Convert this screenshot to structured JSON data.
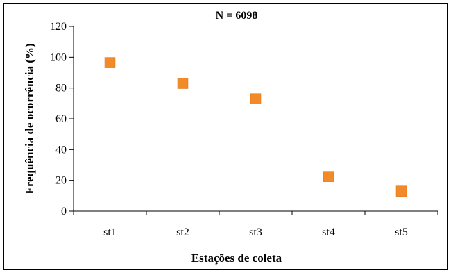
{
  "chart_data": {
    "type": "scatter",
    "title": "N = 6098",
    "xlabel": "Estações de coleta",
    "ylabel": "Frequência de ocorrência (%)",
    "categories": [
      "st1",
      "st2",
      "st3",
      "st4",
      "st5"
    ],
    "values": [
      96.5,
      83,
      73,
      22.5,
      13
    ],
    "ylim": [
      0,
      120
    ],
    "yticks": [
      0,
      20,
      40,
      60,
      80,
      100,
      120
    ],
    "ytick_labels": [
      "0",
      "20",
      "40",
      "60",
      "80",
      "100",
      "120"
    ],
    "grid": false,
    "legend": "none",
    "marker_color": "#F28A2A",
    "marker_shape": "square"
  }
}
